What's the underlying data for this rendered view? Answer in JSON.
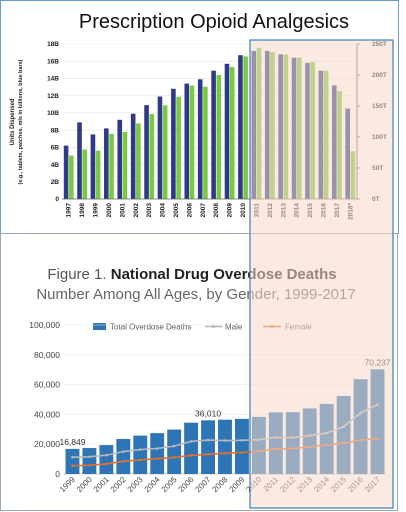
{
  "chart_data": [
    {
      "type": "bar",
      "title": "Prescription Opioid Analgesics",
      "ylabel_left_line1": "Units Dispensed",
      "ylabel_left_line2": "(e.g., tablets, patches, mls in billions, blue bars)",
      "categories": [
        "1997",
        "1998",
        "1999",
        "2000",
        "2001",
        "2002",
        "2003",
        "2004",
        "2005",
        "2006",
        "2007",
        "2008",
        "2009",
        "2010",
        "2011",
        "2012",
        "2013",
        "2014",
        "2015",
        "2016",
        "2017",
        "2018*"
      ],
      "left_ticks": [
        "0",
        "2B",
        "4B",
        "6B",
        "8B",
        "10B",
        "12B",
        "14B",
        "16B",
        "18B"
      ],
      "right_ticks": [
        "0T",
        "50T",
        "100T",
        "150T",
        "200T",
        "250T"
      ],
      "ylim_left": [
        0,
        18
      ],
      "ylim_right": [
        0,
        250
      ],
      "series": [
        {
          "axis": "left",
          "color": "#2e3a87",
          "values": [
            6.2,
            8.9,
            7.5,
            8.2,
            9.2,
            9.9,
            10.9,
            11.9,
            12.8,
            13.4,
            13.9,
            14.9,
            15.7,
            16.7,
            17.2,
            17.2,
            16.8,
            16.4,
            15.8,
            14.9,
            13.2,
            10.5
          ]
        },
        {
          "axis": "right",
          "color": "#7ac943",
          "values": [
            70,
            80,
            78,
            105,
            108,
            122,
            137,
            151,
            165,
            183,
            181,
            200,
            213,
            230,
            244,
            237,
            233,
            228,
            221,
            207,
            174,
            77
          ]
        }
      ]
    },
    {
      "type": "bar",
      "title_prefix": "Figure 1. ",
      "title_bold": "National Drug Overdose Deaths",
      "subtitle": "Number Among All Ages, by Gender, 1999-2017",
      "categories": [
        "1999",
        "2000",
        "2001",
        "2002",
        "2003",
        "2004",
        "2005",
        "2006",
        "2007",
        "2008",
        "2009",
        "2010",
        "2011",
        "2012",
        "2013",
        "2014",
        "2015",
        "2016",
        "2017"
      ],
      "ylim": [
        0,
        100000
      ],
      "y_ticks": [
        "0",
        "20,000",
        "40,000",
        "60,000",
        "80,000",
        "100,000"
      ],
      "legend": [
        "Total Overdose Deaths",
        "Male",
        "Female"
      ],
      "data_labels": [
        {
          "index": 0,
          "text": "16,849"
        },
        {
          "index": 8,
          "text": "36,010"
        },
        {
          "index": 18,
          "text": "70,237"
        }
      ],
      "series": [
        {
          "name": "Total Overdose Deaths",
          "kind": "bar",
          "color": "#2e75b6",
          "values": [
            16849,
            17415,
            19394,
            23518,
            25785,
            27424,
            29813,
            34425,
            36010,
            36450,
            37004,
            38329,
            41340,
            41502,
            43982,
            47055,
            52404,
            63632,
            70237
          ]
        },
        {
          "name": "Male",
          "kind": "line",
          "color": "#b8b8b8",
          "values": [
            11258,
            11563,
            12658,
            15028,
            16399,
            17120,
            18724,
            21893,
            22767,
            22468,
            22593,
            23006,
            24518,
            24395,
            25791,
            27498,
            31730,
            40889,
            46544
          ]
        },
        {
          "name": "Female",
          "kind": "line",
          "color": "#e2712b",
          "values": [
            5591,
            5852,
            6736,
            8490,
            9386,
            10304,
            11089,
            12532,
            13243,
            13982,
            14411,
            15323,
            16822,
            17107,
            18191,
            19557,
            20674,
            22743,
            23693
          ]
        }
      ]
    }
  ],
  "overlay": {
    "fill": "#f6d8c8",
    "border": "#3a7fc1"
  }
}
